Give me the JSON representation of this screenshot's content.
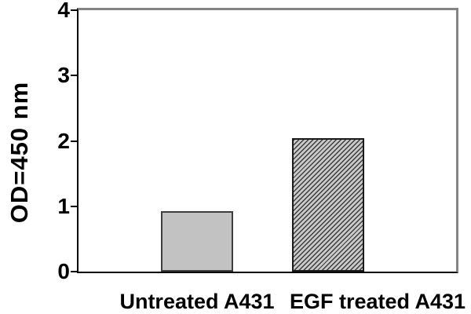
{
  "chart_data": {
    "type": "bar",
    "categories": [
      "Untreated A431",
      "EGF treated A431"
    ],
    "values": [
      0.93,
      2.04
    ],
    "title": "",
    "xlabel": "",
    "ylabel": "OD=450 nm",
    "ylim": [
      0,
      4
    ],
    "yticks": [
      0,
      1,
      2,
      3,
      4
    ],
    "grid": false,
    "legend": false,
    "bar_styles": [
      {
        "fill": "solid",
        "color": "#c2c2c2",
        "border": "#3d3d3d"
      },
      {
        "fill": "diagonal-hatch",
        "color": "#c9c9c9",
        "hatch_color": "#3c3c3c",
        "border": "#1a1a1a"
      }
    ]
  },
  "colors": {
    "axis": "#000000",
    "frame": "#848484",
    "background": "#ffffff",
    "text": "#000000"
  }
}
